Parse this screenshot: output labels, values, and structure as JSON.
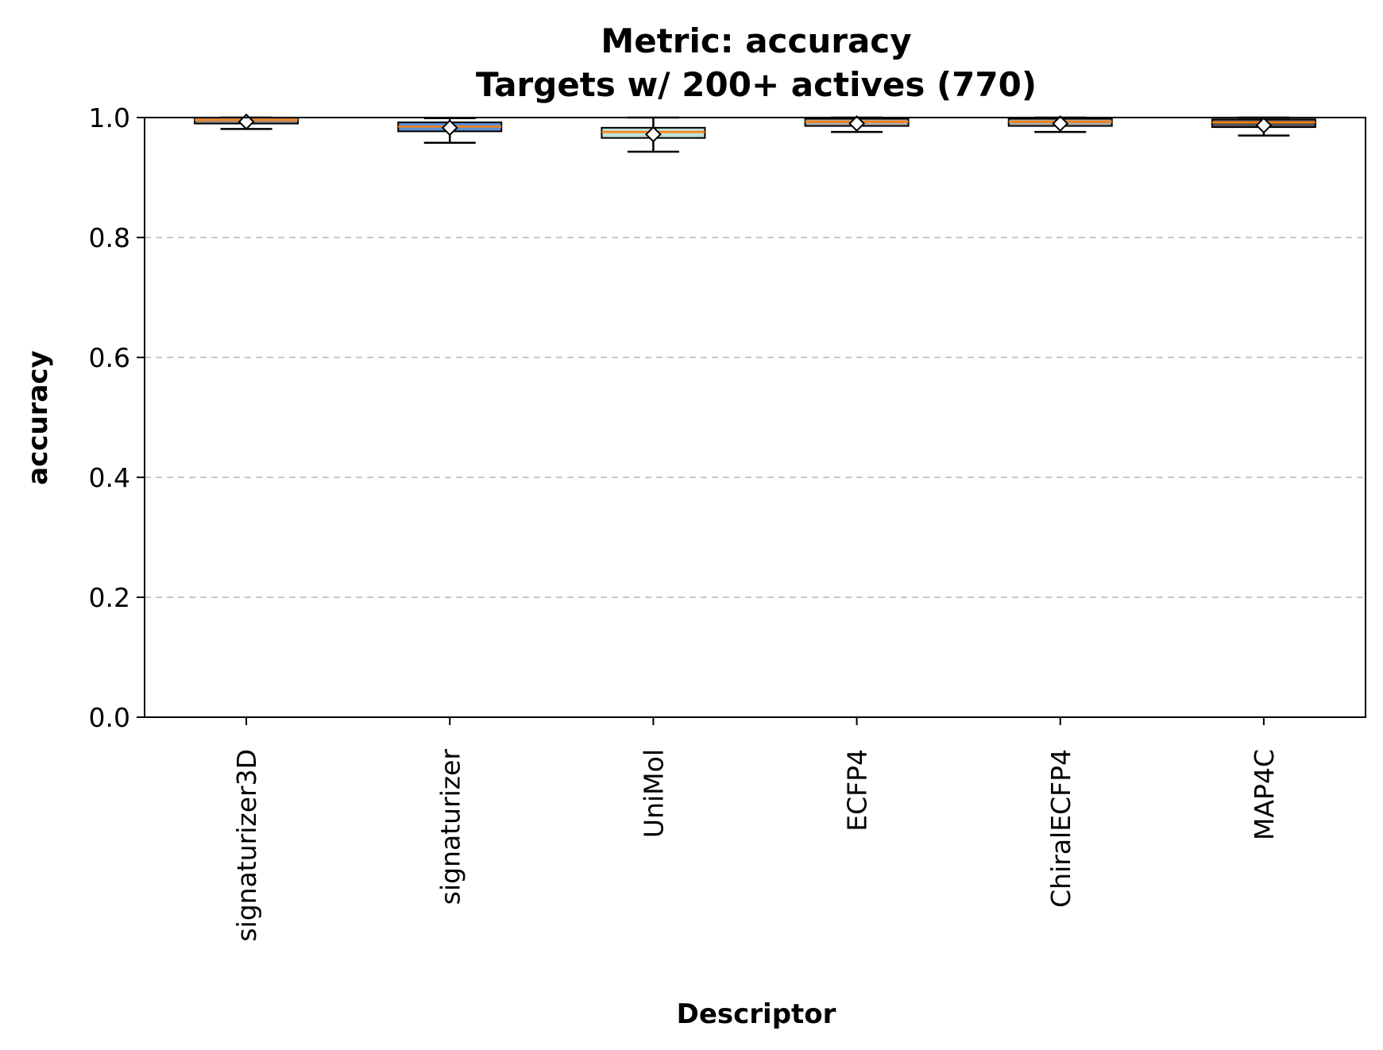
{
  "chart_data": {
    "type": "box",
    "title": "Metric: accuracy",
    "subtitle": "Targets w/ 200+ actives (770)",
    "xlabel": "Descriptor",
    "ylabel": "accuracy",
    "ylim": [
      0.0,
      1.0
    ],
    "yticks": [
      "0.0",
      "0.2",
      "0.4",
      "0.6",
      "0.8",
      "1.0"
    ],
    "grid": "y-dashed",
    "categories": [
      "signaturizer3D",
      "signaturizer",
      "UniMol",
      "ECFP4",
      "ChiralECFP4",
      "MAP4C"
    ],
    "boxes": [
      {
        "label": "signaturizer3D",
        "whisker_low": 0.981,
        "q1": 0.99,
        "median": 0.996,
        "q3": 1.0,
        "whisker_high": 1.0,
        "mean": 0.993,
        "color": "#8e8e8e"
      },
      {
        "label": "signaturizer",
        "whisker_low": 0.958,
        "q1": 0.977,
        "median": 0.985,
        "q3": 0.992,
        "whisker_high": 0.999,
        "mean": 0.983,
        "color": "#5b8fd6"
      },
      {
        "label": "UniMol",
        "whisker_low": 0.943,
        "q1": 0.966,
        "median": 0.976,
        "q3": 0.983,
        "whisker_high": 1.0,
        "mean": 0.972,
        "color": "#c2e0d6"
      },
      {
        "label": "ECFP4",
        "whisker_low": 0.976,
        "q1": 0.986,
        "median": 0.993,
        "q3": 0.998,
        "whisker_high": 1.0,
        "mean": 0.99,
        "color": "#a9a9a9"
      },
      {
        "label": "ChiralECFP4",
        "whisker_low": 0.976,
        "q1": 0.986,
        "median": 0.993,
        "q3": 0.998,
        "whisker_high": 1.0,
        "mean": 0.99,
        "color": "#a9a9a9"
      },
      {
        "label": "MAP4C",
        "whisker_low": 0.97,
        "q1": 0.984,
        "median": 0.992,
        "q3": 0.997,
        "whisker_high": 1.0,
        "mean": 0.987,
        "color": "#555555"
      }
    ]
  }
}
